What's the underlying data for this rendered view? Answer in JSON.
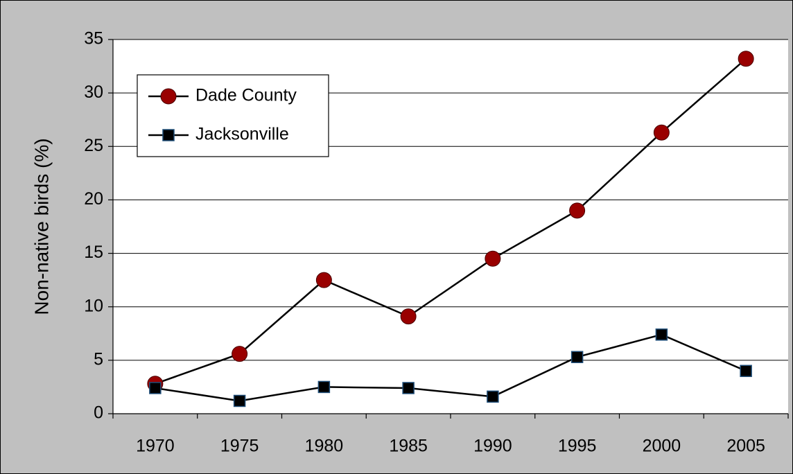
{
  "chart_data": {
    "type": "line",
    "y_label": "Non-native birds (%)",
    "categories": [
      "1970",
      "1975",
      "1980",
      "1985",
      "1990",
      "1995",
      "2000",
      "2005"
    ],
    "series": [
      {
        "name": "Dade County",
        "color": "#990000",
        "marker": "circle",
        "values": [
          2.8,
          5.6,
          12.5,
          9.1,
          14.5,
          19,
          26.3,
          33.2
        ]
      },
      {
        "name": "Jacksonville",
        "color": "#000000",
        "marker": "square",
        "values": [
          2.4,
          1.2,
          2.5,
          2.4,
          1.6,
          5.3,
          7.4,
          4.0
        ]
      }
    ],
    "ylim": [
      0,
      35
    ],
    "yticks": [
      0,
      5,
      10,
      15,
      20,
      25,
      30,
      35
    ],
    "grid": true,
    "legend": "upper left"
  }
}
